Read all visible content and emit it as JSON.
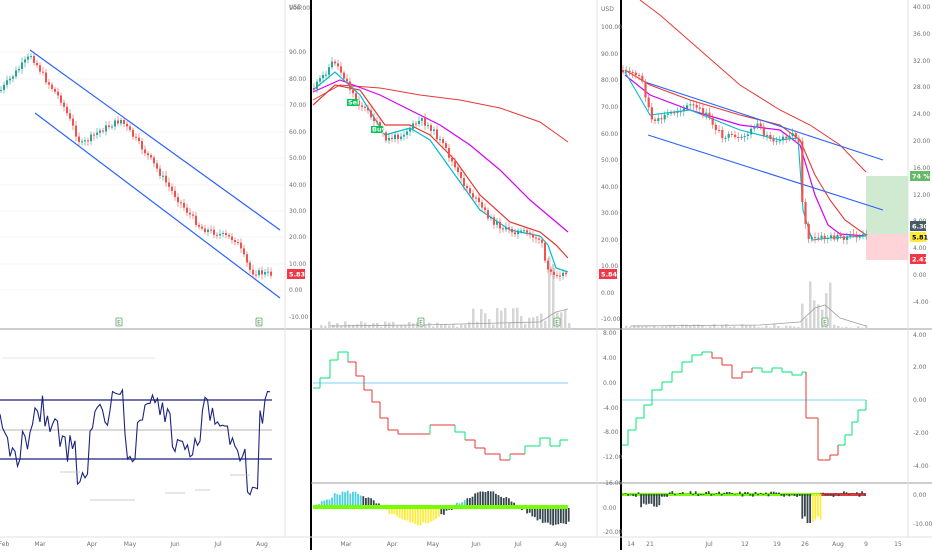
{
  "panels": {
    "left": {
      "price_axis_labels": [
        "USD",
        "100.00",
        "90.00",
        "80.00",
        "70.00",
        "60.00",
        "50.00",
        "40.00",
        "30.00",
        "20.00",
        "10.00",
        "0.00",
        "-10.00"
      ],
      "last_price": "5.83",
      "date_labels": [
        "Feb",
        "Mar",
        "Apr",
        "May",
        "Jun",
        "Jul",
        "Aug"
      ],
      "event_marker": "E",
      "oscillator": {
        "levels": [
          70,
          50,
          30
        ]
      }
    },
    "middle": {
      "price_axis_labels": [
        "USD",
        "100.00",
        "90.00",
        "80.00",
        "70.00",
        "60.00",
        "50.00",
        "40.00",
        "30.00",
        "20.00",
        "10.00",
        "0.00",
        "-10.00"
      ],
      "last_price": "5.84",
      "date_labels": [
        "Mar",
        "Apr",
        "May",
        "Jun",
        "Jul",
        "Aug"
      ],
      "event_marker": "E",
      "signal_labels": [
        "Sell",
        "Buy"
      ],
      "sub1_axis_labels": [
        "8.00",
        "4.00",
        "0.00",
        "-4.00",
        "-8.00",
        "-12.00"
      ],
      "sub2_axis_labels": [
        "-16.00",
        "0.00",
        "-20.00"
      ]
    },
    "right": {
      "price_axis_labels": [
        "40.00",
        "36.00",
        "32.00",
        "28.00",
        "24.00",
        "20.00",
        "16.00",
        "12.00",
        "8.00",
        "4.00",
        "0.00",
        "-4.00"
      ],
      "last_price": "5.81",
      "target_price": "6.30",
      "stop_price": "2.47",
      "reward_pct": "74 %",
      "date_labels": [
        "14",
        "21",
        "Jul",
        "12",
        "19",
        "26",
        "Aug",
        "9",
        "15"
      ],
      "event_marker": "E",
      "sub1_axis_labels": [
        "4.00",
        "2.00",
        "0.00",
        "-2.00",
        "-4.00"
      ],
      "sub2_axis_labels": [
        "0.00",
        "-10.00"
      ]
    }
  },
  "colors": {
    "up_candle": "#26a69a",
    "down_candle": "#ef5350",
    "channel": "#2962ff",
    "ema_fast": "#00bcd4",
    "ma_red": "#e53935",
    "ma_magenta": "#d500f9",
    "oscillator": "#1a237e",
    "price_tag": "#f23645"
  }
}
